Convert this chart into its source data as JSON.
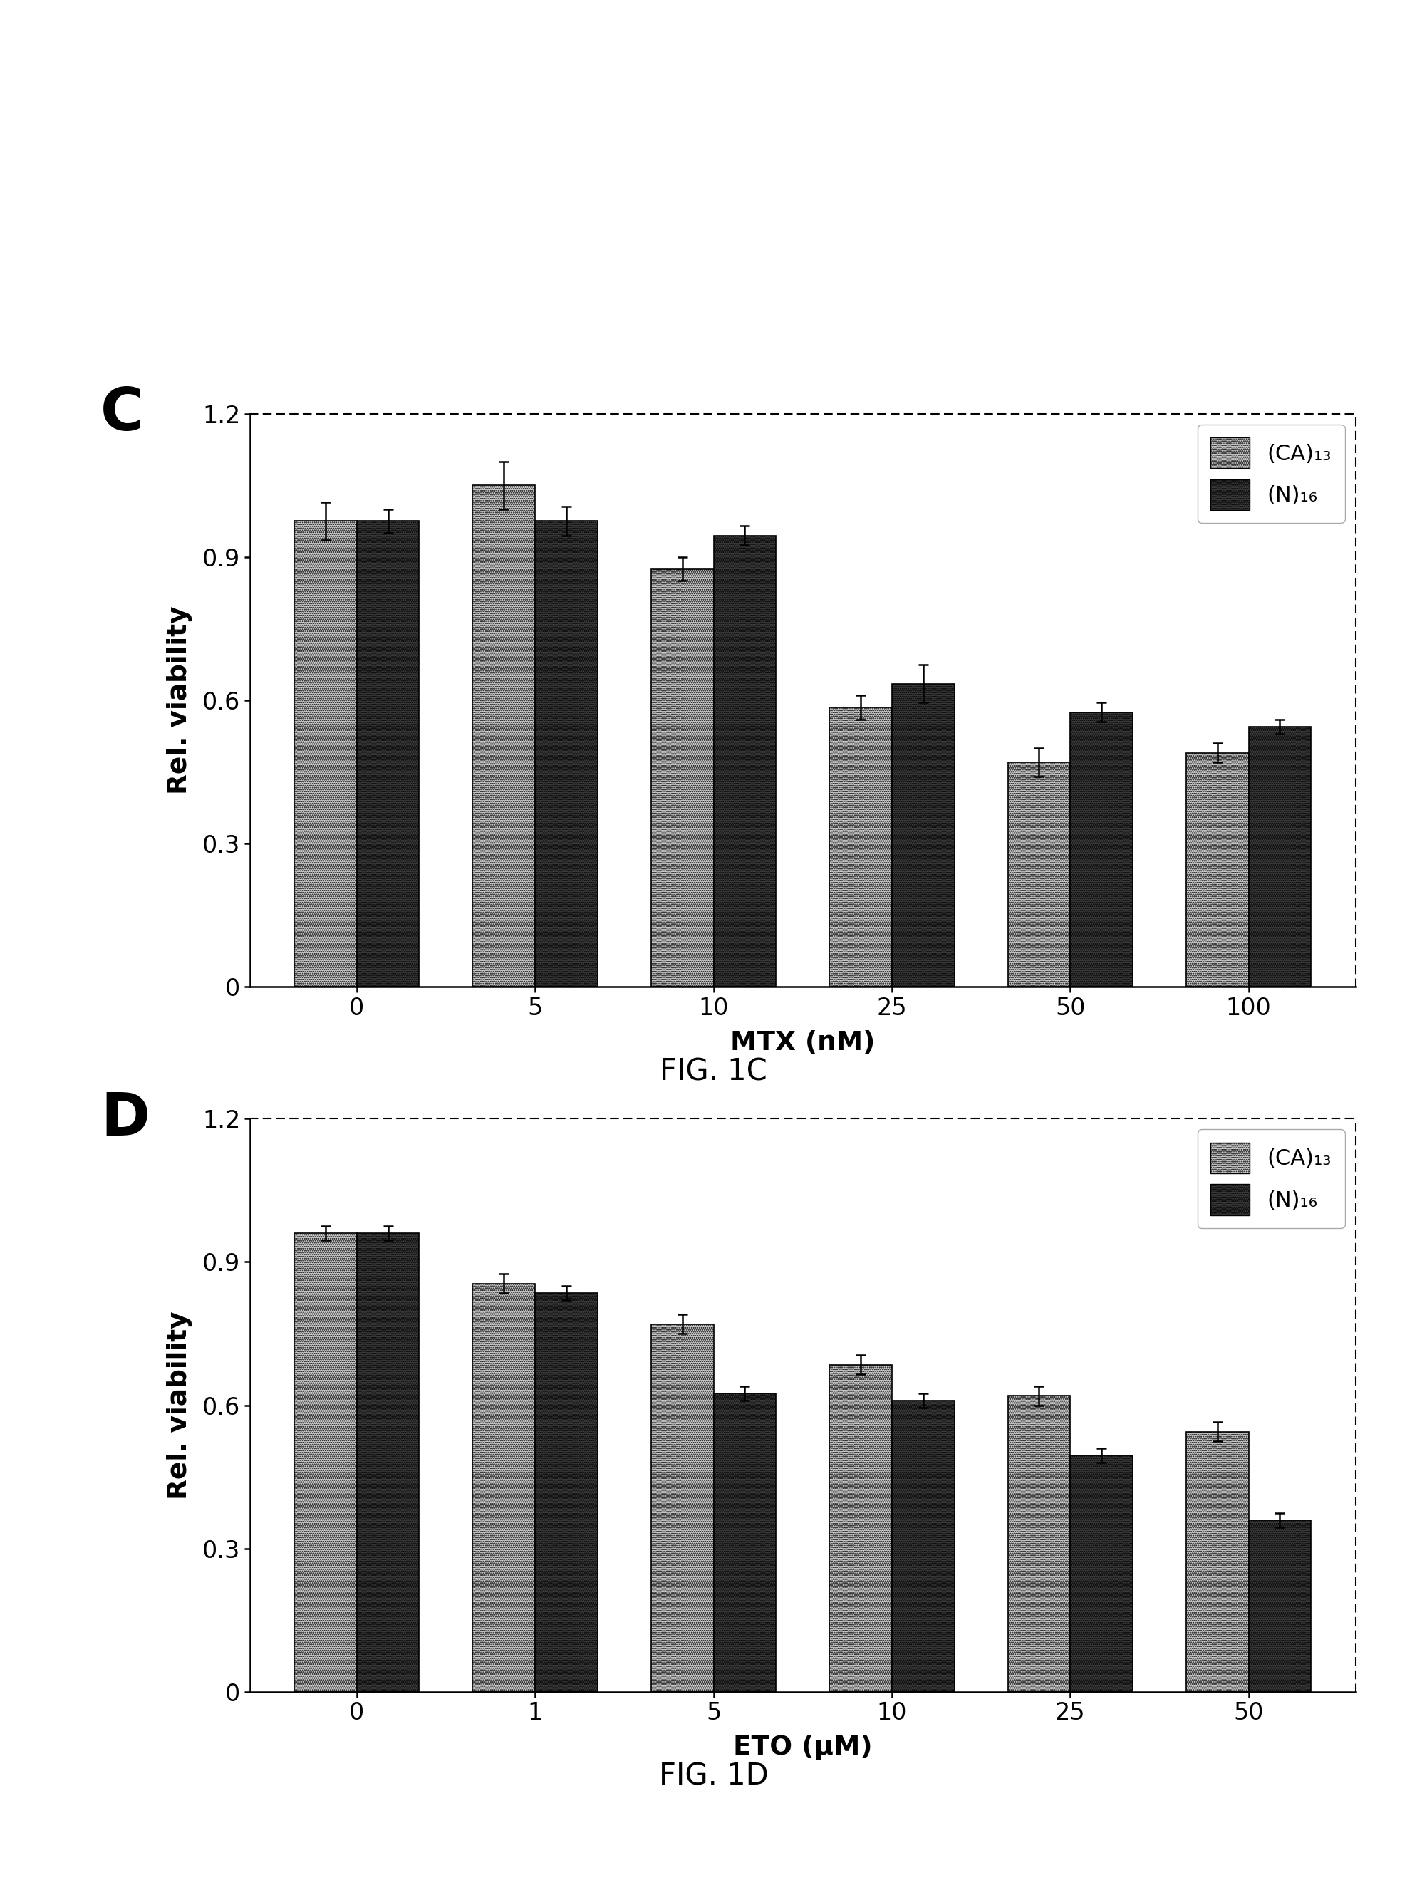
{
  "figC": {
    "panel_label": "C",
    "categories": [
      "0",
      "5",
      "10",
      "25",
      "50",
      "100"
    ],
    "xlabel": "MTX (nM)",
    "ylabel": "Rel. viability",
    "ylim": [
      0,
      1.2
    ],
    "yticks": [
      0,
      0.3,
      0.6,
      0.9,
      1.2
    ],
    "ca_values": [
      0.975,
      1.05,
      0.875,
      0.585,
      0.47,
      0.49
    ],
    "n_values": [
      0.975,
      0.975,
      0.945,
      0.635,
      0.575,
      0.545
    ],
    "ca_errors": [
      0.04,
      0.05,
      0.025,
      0.025,
      0.03,
      0.02
    ],
    "n_errors": [
      0.025,
      0.03,
      0.02,
      0.04,
      0.02,
      0.015
    ],
    "fig_label": "FIG. 1C"
  },
  "figD": {
    "panel_label": "D",
    "categories": [
      "0",
      "1",
      "5",
      "10",
      "25",
      "50"
    ],
    "xlabel": "ETO (μM)",
    "ylabel": "Rel. viability",
    "ylim": [
      0,
      1.2
    ],
    "yticks": [
      0,
      0.3,
      0.6,
      0.9,
      1.2
    ],
    "ca_values": [
      0.96,
      0.855,
      0.77,
      0.685,
      0.62,
      0.545
    ],
    "n_values": [
      0.96,
      0.835,
      0.625,
      0.61,
      0.495,
      0.36
    ],
    "ca_errors": [
      0.015,
      0.02,
      0.02,
      0.02,
      0.02,
      0.02
    ],
    "n_errors": [
      0.015,
      0.015,
      0.015,
      0.015,
      0.015,
      0.015
    ],
    "fig_label": "FIG. 1D"
  },
  "ca_color": "#c8c8c8",
  "n_color": "#3a3a3a",
  "bar_width": 0.35,
  "legend_ca": "(CA)₁₃",
  "legend_n": "(N)₁₆",
  "background": "#ffffff"
}
